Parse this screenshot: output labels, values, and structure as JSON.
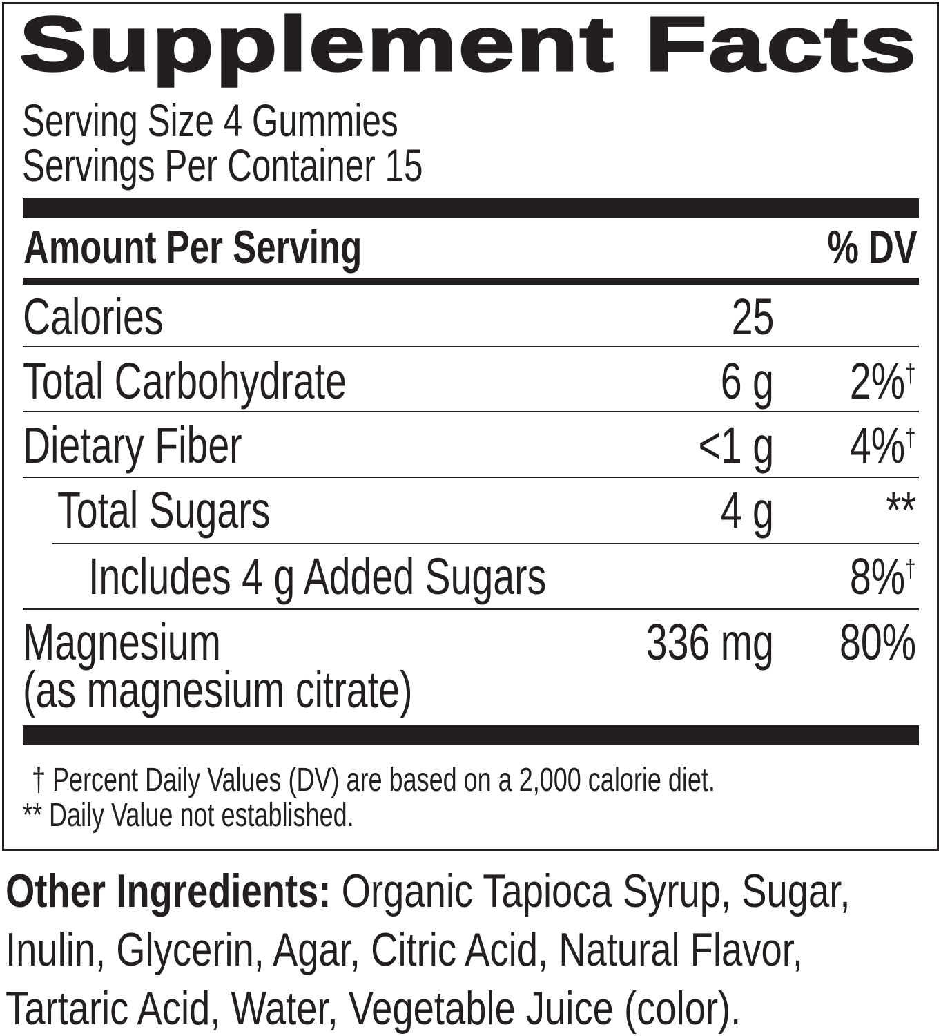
{
  "title": "Supplement Facts",
  "serving_size": "Serving Size 4 Gummies",
  "servings_per_container": "Servings Per Container 15",
  "header": {
    "amount": "Amount Per Serving",
    "dv": "% DV"
  },
  "rows": [
    {
      "name": "Calories",
      "amount": "25",
      "dv": "",
      "mark": ""
    },
    {
      "name": "Total Carbohydrate",
      "amount": "6 g",
      "dv": "2%",
      "mark": "†"
    },
    {
      "name": "Dietary Fiber",
      "amount": "<1 g",
      "dv": "4%",
      "mark": "†"
    },
    {
      "name": "Total Sugars",
      "amount": "4 g",
      "dv": "**",
      "mark": ""
    },
    {
      "name": "Includes 4 g Added Sugars",
      "amount": "",
      "dv": "8%",
      "mark": "†"
    },
    {
      "name": "Magnesium",
      "sub": "(as magnesium citrate)",
      "amount": "336 mg",
      "dv": "80%",
      "mark": ""
    }
  ],
  "footnotes": [
    {
      "mark": "†",
      "text": "Percent Daily Values (DV) are based on a 2,000 calorie diet."
    },
    {
      "mark": "**",
      "text": "Daily Value not established."
    }
  ],
  "other_ingredients": {
    "label": "Other Ingredients:",
    "lines": [
      " Organic Tapioca Syrup, Sugar,",
      "Inulin, Glycerin, Agar, Citric Acid, Natural Flavor,",
      "Tartaric Acid, Water, Vegetable Juice (color)."
    ]
  }
}
